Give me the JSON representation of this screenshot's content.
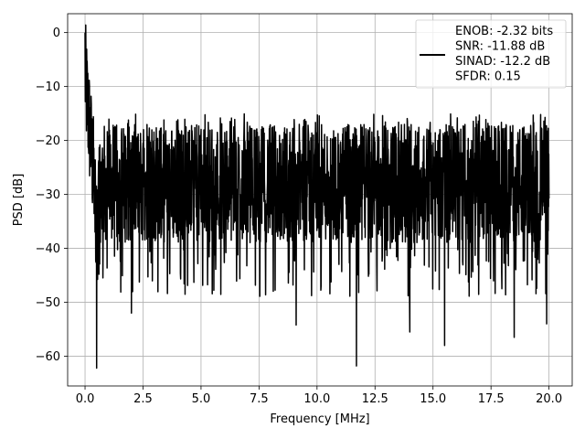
{
  "chart_data": {
    "type": "line",
    "title": "",
    "xlabel": "Frequency [MHz]",
    "ylabel": "PSD [dB]",
    "xlim": [
      -0.75,
      21.0
    ],
    "ylim": [
      -65.5,
      3.5
    ],
    "xticks": [
      0.0,
      2.5,
      5.0,
      7.5,
      10.0,
      12.5,
      15.0,
      17.5,
      20.0
    ],
    "xtick_labels": [
      "0.0",
      "2.5",
      "5.0",
      "7.5",
      "10.0",
      "12.5",
      "15.0",
      "17.5",
      "20.0"
    ],
    "yticks": [
      0,
      -10,
      -20,
      -30,
      -40,
      -50,
      -60
    ],
    "ytick_labels": [
      "0",
      "−10",
      "−20",
      "−30",
      "−40",
      "−50",
      "−60"
    ],
    "grid": true,
    "legend_position": "top-right",
    "line_color": "#000000",
    "legend": {
      "lines": [
        "ENOB: -2.32 bits",
        "SNR: -11.88 dB",
        "SINAD: -12.2 dB",
        "SFDR: 0.15"
      ]
    },
    "series": [
      {
        "x_range": [
          0.0,
          20.0
        ],
        "n_points": 2000,
        "noise_band_db": [
          -38,
          -18
        ],
        "typical_level_db": -28,
        "peaks": [
          {
            "x": 0.0,
            "y": 0.0
          }
        ],
        "low_region": {
          "x_range": [
            0.0,
            0.4
          ],
          "y_range": [
            -35,
            -5
          ]
        },
        "notable_dips": [
          {
            "x": 0.5,
            "y": -62.2
          },
          {
            "x": 0.6,
            "y": -44.8
          },
          {
            "x": 2.0,
            "y": -52.0
          },
          {
            "x": 9.1,
            "y": -54.2
          },
          {
            "x": 11.7,
            "y": -61.8
          },
          {
            "x": 14.0,
            "y": -55.5
          },
          {
            "x": 15.5,
            "y": -58.0
          },
          {
            "x": 18.5,
            "y": -56.5
          },
          {
            "x": 19.9,
            "y": -54.0
          }
        ]
      }
    ]
  }
}
